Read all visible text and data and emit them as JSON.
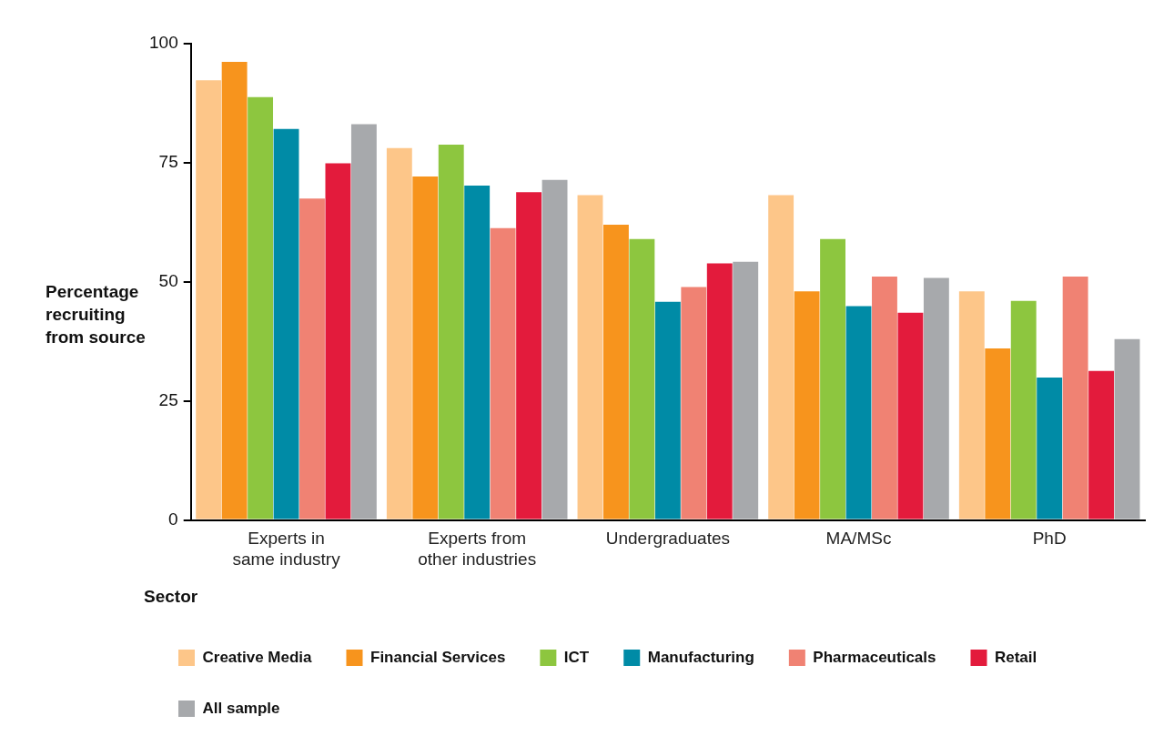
{
  "chart_data": {
    "type": "bar",
    "ylabel": "Percentage recruiting from source",
    "legend_title": "Sector",
    "categories": [
      "Experts in same industry",
      "Experts from other industries",
      "Undergraduates",
      "MA/MSc",
      "PhD"
    ],
    "series": [
      {
        "name": "Creative Media",
        "color": "#fdc689",
        "values": [
          92.3,
          78.1,
          68.2,
          68.2,
          48.0
        ]
      },
      {
        "name": "Financial Services",
        "color": "#f7941d",
        "values": [
          96.2,
          72.1,
          62.0,
          48.0,
          36.0
        ]
      },
      {
        "name": "ICT",
        "color": "#8dc63f",
        "values": [
          88.8,
          78.8,
          59.0,
          59.0,
          46.0
        ]
      },
      {
        "name": "Manufacturing",
        "color": "#008ba6",
        "values": [
          82.1,
          70.2,
          45.8,
          44.9,
          29.9
        ]
      },
      {
        "name": "Pharmaceuticals",
        "color": "#f08273",
        "values": [
          67.5,
          61.3,
          48.9,
          51.1,
          51.1
        ]
      },
      {
        "name": "Retail",
        "color": "#e31b3c",
        "values": [
          74.9,
          68.8,
          53.9,
          43.5,
          31.3
        ]
      },
      {
        "name": "All sample",
        "color": "#a7a9ac",
        "values": [
          83.1,
          71.4,
          54.2,
          50.8,
          38.0
        ]
      }
    ],
    "ylim": [
      0,
      100
    ],
    "yticks": [
      0,
      25,
      50,
      75,
      100
    ],
    "grid": false,
    "legend": "bottom"
  }
}
